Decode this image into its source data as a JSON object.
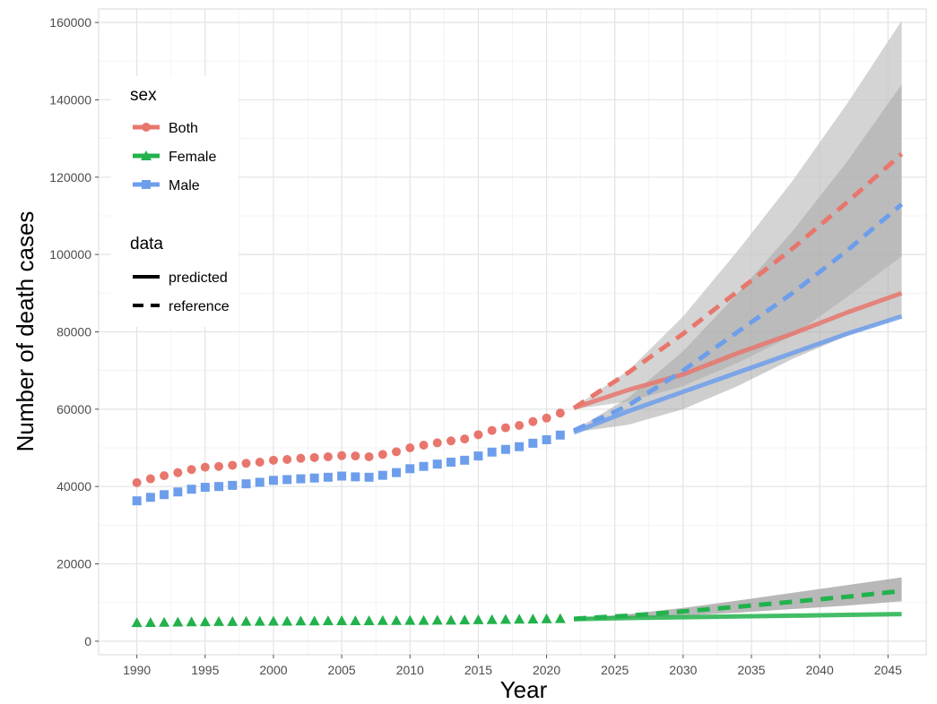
{
  "chart_data": {
    "type": "line",
    "xlabel": "Year",
    "ylabel": "Number of death cases",
    "xlim": [
      1987.2,
      2047.8
    ],
    "ylim": [
      -3500,
      163500
    ],
    "x_ticks": [
      1990,
      1995,
      2000,
      2005,
      2010,
      2015,
      2020,
      2025,
      2030,
      2035,
      2040,
      2045
    ],
    "x_tick_labels": [
      "1990",
      "1995",
      "2000",
      "2005",
      "2010",
      "2015",
      "2020",
      "2025",
      "2030",
      "2035",
      "2040",
      "2045"
    ],
    "y_ticks": [
      0,
      20000,
      40000,
      60000,
      80000,
      100000,
      120000,
      140000,
      160000
    ],
    "y_tick_labels": [
      "0",
      "20000",
      "40000",
      "60000",
      "80000",
      "100000",
      "120000",
      "140000",
      "160000"
    ],
    "grid": true,
    "legend_position": "top-left",
    "legends": [
      {
        "title": "sex",
        "entries": [
          {
            "label": "Both",
            "color": "#e8766d",
            "marker": "circle"
          },
          {
            "label": "Female",
            "color": "#22b24c",
            "marker": "triangle"
          },
          {
            "label": "Male",
            "color": "#6d9eeb",
            "marker": "square"
          }
        ]
      },
      {
        "title": "data",
        "entries": [
          {
            "label": "predicted",
            "linestyle": "solid"
          },
          {
            "label": "reference",
            "linestyle": "dashed"
          }
        ]
      }
    ],
    "observed": {
      "x": [
        1990,
        1991,
        1992,
        1993,
        1994,
        1995,
        1996,
        1997,
        1998,
        1999,
        2000,
        2001,
        2002,
        2003,
        2004,
        2005,
        2006,
        2007,
        2008,
        2009,
        2010,
        2011,
        2012,
        2013,
        2014,
        2015,
        2016,
        2017,
        2018,
        2019,
        2020,
        2021
      ],
      "series": [
        {
          "name": "Both",
          "color": "#e8766d",
          "marker": "circle",
          "values": [
            41000,
            42000,
            42800,
            43600,
            44400,
            45000,
            45200,
            45500,
            46000,
            46300,
            46800,
            47000,
            47300,
            47500,
            47700,
            48000,
            47900,
            47700,
            48300,
            49000,
            50000,
            50700,
            51300,
            51800,
            52300,
            53400,
            54500,
            55200,
            55800,
            56800,
            57700,
            59000
          ]
        },
        {
          "name": "Female",
          "color": "#22b24c",
          "marker": "triangle",
          "values": [
            4800,
            4850,
            4900,
            4950,
            5000,
            5050,
            5100,
            5100,
            5150,
            5150,
            5200,
            5200,
            5250,
            5250,
            5300,
            5300,
            5300,
            5300,
            5350,
            5350,
            5400,
            5400,
            5450,
            5450,
            5500,
            5550,
            5600,
            5650,
            5700,
            5750,
            5800,
            5850
          ]
        },
        {
          "name": "Male",
          "color": "#6d9eeb",
          "marker": "square",
          "values": [
            36300,
            37200,
            37900,
            38600,
            39300,
            39800,
            40000,
            40300,
            40700,
            41100,
            41600,
            41800,
            42000,
            42200,
            42400,
            42700,
            42500,
            42400,
            42900,
            43600,
            44600,
            45200,
            45800,
            46300,
            46800,
            47900,
            48900,
            49600,
            50300,
            51200,
            52100,
            53300
          ]
        }
      ]
    },
    "forecast": {
      "x": [
        2022,
        2026,
        2030,
        2034,
        2038,
        2042,
        2046
      ],
      "bands": [
        {
          "name": "Both",
          "lower": [
            60000,
            62000,
            66000,
            72000,
            79000,
            89000,
            99500
          ],
          "upper": [
            60500,
            70000,
            84000,
            101000,
            119000,
            139000,
            160500
          ]
        },
        {
          "name": "Male",
          "lower": [
            54000,
            56000,
            60000,
            66000,
            73000,
            79000,
            84000
          ],
          "upper": [
            54500,
            63000,
            75000,
            90000,
            106000,
            124000,
            144000
          ]
        },
        {
          "name": "Female",
          "lower": [
            5700,
            6000,
            6600,
            7400,
            8300,
            9200,
            10300
          ],
          "upper": [
            5900,
            7000,
            8600,
            10500,
            12500,
            14500,
            16500
          ]
        }
      ],
      "series": [
        {
          "name": "Both",
          "linestyle": "dashed",
          "values": [
            60300,
            69500,
            79500,
            90500,
            101500,
            113500,
            126000
          ]
        },
        {
          "name": "Both",
          "linestyle": "solid",
          "values": [
            60300,
            65000,
            69000,
            74500,
            79500,
            85000,
            90000
          ]
        },
        {
          "name": "Male",
          "linestyle": "dashed",
          "values": [
            54500,
            61000,
            70000,
            80000,
            90000,
            101000,
            113000
          ]
        },
        {
          "name": "Male",
          "linestyle": "solid",
          "values": [
            54000,
            59500,
            64500,
            69500,
            74500,
            79500,
            84000
          ]
        },
        {
          "name": "Female",
          "linestyle": "dashed",
          "values": [
            5800,
            6600,
            7700,
            8900,
            10200,
            11500,
            13000
          ]
        },
        {
          "name": "Female",
          "linestyle": "solid",
          "values": [
            5700,
            6000,
            6200,
            6400,
            6600,
            6800,
            7000
          ]
        }
      ]
    }
  },
  "colors": {
    "Both": "#e8766d",
    "Female": "#22b24c",
    "Male": "#6d9eeb",
    "band_outer": "#c6c6c6",
    "band_inner": "#a6a6a6"
  }
}
